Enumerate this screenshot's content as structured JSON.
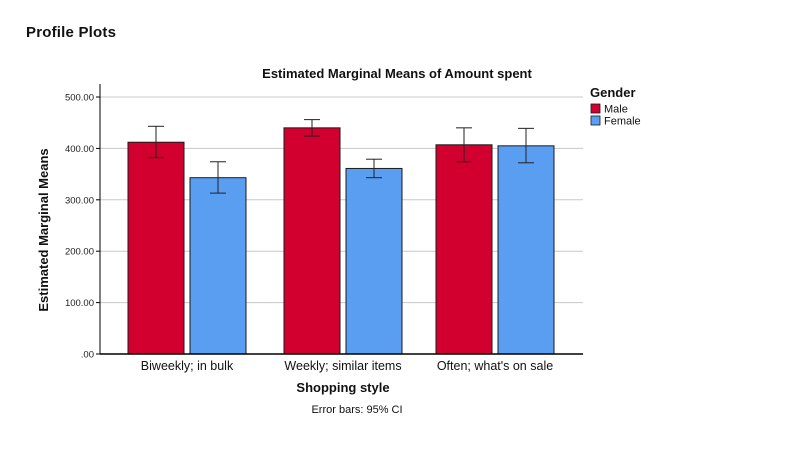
{
  "page": {
    "section_title": "Profile Plots"
  },
  "chart_data": {
    "type": "bar",
    "title": "Estimated Marginal Means of Amount spent",
    "xlabel": "Shopping style",
    "ylabel": "Estimated Marginal Means",
    "footnote": "Error bars: 95% CI",
    "categories": [
      "Biweekly; in bulk",
      "Weekly; similar items",
      "Often; what's on sale"
    ],
    "ylim": [
      0,
      500
    ],
    "yticks": [
      0,
      100,
      200,
      300,
      400,
      500
    ],
    "ytick_labels": [
      ".00",
      "100.00",
      "200.00",
      "300.00",
      "400.00",
      "500.00"
    ],
    "grid": "horizontal",
    "legend": {
      "title": "Gender",
      "placement": "top-right outside"
    },
    "series": [
      {
        "name": "Male",
        "color": "#d1002e",
        "values": [
          412,
          440,
          407
        ],
        "ci_low": [
          382,
          424,
          374
        ],
        "ci_high": [
          443,
          456,
          440
        ]
      },
      {
        "name": "Female",
        "color": "#5a9ef2",
        "values": [
          343,
          361,
          405
        ],
        "ci_low": [
          313,
          343,
          372
        ],
        "ci_high": [
          374,
          379,
          439
        ]
      }
    ]
  }
}
